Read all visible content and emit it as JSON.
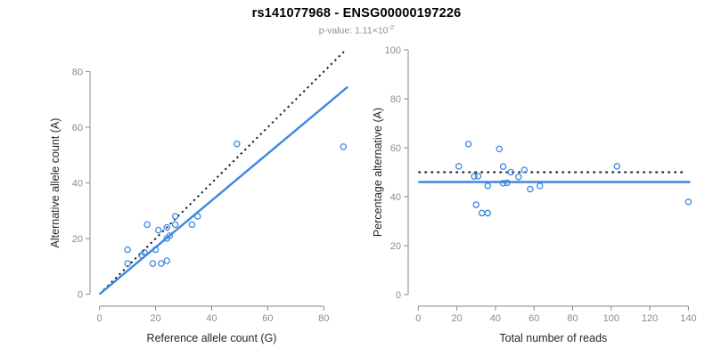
{
  "header": {
    "title": "rs141077968 - ENSG00000197226",
    "pvalue_base": "p-value: 1.11×10",
    "pvalue_exponent": "-2"
  },
  "colors": {
    "point_blue": "#3b87e0",
    "fit_line_blue": "#3b87e0",
    "reference_line_black": "#1a1a1a",
    "axis_gray": "#8a8a8a",
    "tick_label_gray": "#8c8c8c",
    "axis_title_dark": "#262626",
    "background": "#ffffff"
  },
  "chart_data": [
    {
      "name": "allele-counts",
      "type": "scatter",
      "xlabel": "Reference allele count (G)",
      "ylabel": "Alternative allele count (A)",
      "xlim": [
        0,
        80
      ],
      "ylim": [
        0,
        80
      ],
      "xticks": [
        0,
        20,
        40,
        60,
        80
      ],
      "yticks": [
        0,
        20,
        40,
        60,
        80
      ],
      "grid": false,
      "legend": "none",
      "marker": "open-circle",
      "marker_color": "#3b87e0",
      "points": [
        [
          10,
          16
        ],
        [
          10,
          11
        ],
        [
          15,
          14
        ],
        [
          16,
          15
        ],
        [
          17,
          25
        ],
        [
          19,
          11
        ],
        [
          20,
          16
        ],
        [
          21,
          23
        ],
        [
          22,
          11
        ],
        [
          24,
          12
        ],
        [
          24,
          20
        ],
        [
          24,
          24
        ],
        [
          25,
          21
        ],
        [
          27,
          25
        ],
        [
          27,
          28
        ],
        [
          33,
          25
        ],
        [
          35,
          28
        ],
        [
          49,
          54
        ],
        [
          87,
          53
        ]
      ],
      "lines": [
        {
          "name": "identity-line",
          "style": "dotted",
          "color": "#1a1a1a",
          "width": 2,
          "dash": "2.2 4",
          "from": [
            0,
            0
          ],
          "to": [
            88,
            88
          ]
        },
        {
          "name": "regression-line",
          "style": "solid",
          "color": "#3b87e0",
          "width": 2.4,
          "from": [
            0,
            0
          ],
          "to": [
            88.5,
            74.5
          ]
        }
      ]
    },
    {
      "name": "percentage-vs-coverage",
      "type": "scatter",
      "xlabel": "Total number of reads",
      "ylabel": "Percentage alternative (A)",
      "xlim": [
        0,
        140
      ],
      "ylim": [
        0,
        100
      ],
      "xticks": [
        0,
        20,
        40,
        60,
        80,
        100,
        120,
        140
      ],
      "yticks": [
        0,
        20,
        40,
        60,
        80,
        100
      ],
      "grid": false,
      "legend": "none",
      "marker": "open-circle",
      "marker_color": "#3b87e0",
      "points": [
        [
          26,
          61.5
        ],
        [
          21,
          52.4
        ],
        [
          29,
          48.3
        ],
        [
          31,
          48.4
        ],
        [
          42,
          59.5
        ],
        [
          30,
          36.7
        ],
        [
          36,
          44.4
        ],
        [
          44,
          52.3
        ],
        [
          33,
          33.3
        ],
        [
          36,
          33.3
        ],
        [
          44,
          45.5
        ],
        [
          48,
          50.0
        ],
        [
          46,
          45.7
        ],
        [
          52,
          48.1
        ],
        [
          55,
          50.9
        ],
        [
          58,
          43.1
        ],
        [
          63,
          44.4
        ],
        [
          103,
          52.4
        ],
        [
          140,
          37.9
        ]
      ],
      "lines": [
        {
          "name": "fifty-percent-line",
          "style": "dotted",
          "color": "#1a1a1a",
          "width": 2,
          "dash": "2.8 4.2",
          "from": [
            0,
            50
          ],
          "to": [
            138,
            50
          ]
        },
        {
          "name": "mean-percentage-line",
          "style": "solid",
          "color": "#3b87e0",
          "width": 2.4,
          "from": [
            0,
            46
          ],
          "to": [
            141,
            46
          ]
        }
      ]
    }
  ]
}
